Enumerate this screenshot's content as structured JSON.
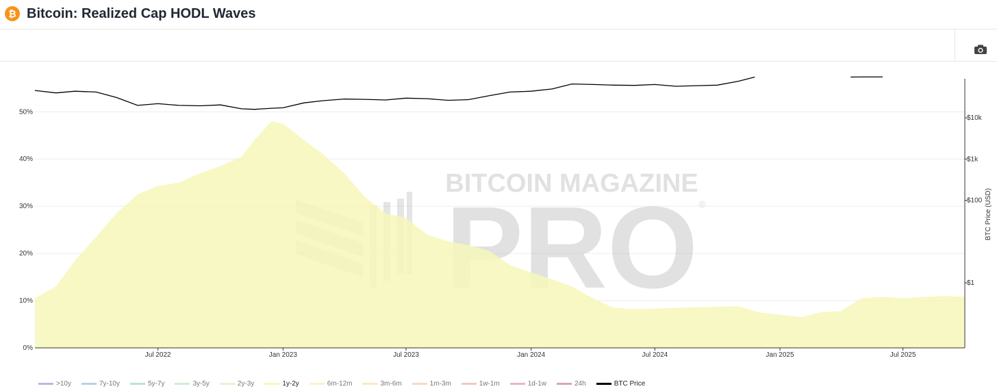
{
  "header": {
    "logo_glyph": "₿",
    "title": "Bitcoin: Realized Cap HODL Waves"
  },
  "toolbar": {
    "camera_icon": "camera-icon"
  },
  "watermark": {
    "line1": "BITCOIN MAGAZINE",
    "line2": "PRO",
    "mark": "®"
  },
  "legend": [
    {
      "label": ">10y",
      "color": "#a9a6d6",
      "active": false
    },
    {
      "label": "7y-10y",
      "color": "#a7c4e4",
      "active": false
    },
    {
      "label": "5y-7y",
      "color": "#a8dcd2",
      "active": false
    },
    {
      "label": "3y-5y",
      "color": "#c6e8c8",
      "active": false
    },
    {
      "label": "2y-3y",
      "color": "#e4f0c6",
      "active": false
    },
    {
      "label": "1y-2y",
      "color": "#f6f7b8",
      "active": true
    },
    {
      "label": "6m-12m",
      "color": "#fbefbc",
      "active": false
    },
    {
      "label": "3m-6m",
      "color": "#fbe1b4",
      "active": false
    },
    {
      "label": "1m-3m",
      "color": "#f9cdb3",
      "active": false
    },
    {
      "label": "1w-1m",
      "color": "#f3b6b1",
      "active": false
    },
    {
      "label": "1d-1w",
      "color": "#e7a3ae",
      "active": false
    },
    {
      "label": "24h",
      "color": "#cf8f9f",
      "active": false
    },
    {
      "label": "BTC Price",
      "color": "#000000",
      "active": true
    }
  ],
  "chart_data": {
    "type": "area",
    "title": "Bitcoin: Realized Cap HODL Waves",
    "x_ticks": [
      "Jul 2022",
      "Jan 2023",
      "Jul 2023",
      "Jan 2024",
      "Jul 2024",
      "Jan 2025",
      "Jul 2025"
    ],
    "y_left_ticks": [
      "0%",
      "10%",
      "20%",
      "30%",
      "40%",
      "50%"
    ],
    "y_left_range": [
      0,
      57
    ],
    "y_right_ticks": [
      "$1",
      "$100",
      "$1k",
      "$10k"
    ],
    "y_right_label": "BTC Price (USD)",
    "y_right_scale": "log",
    "series": [
      {
        "name": "1y-2y",
        "color": "#f6f7b8",
        "x": [
          "2022-01-01",
          "2022-02-01",
          "2022-03-01",
          "2022-04-01",
          "2022-05-01",
          "2022-06-01",
          "2022-07-01",
          "2022-08-01",
          "2022-09-01",
          "2022-10-01",
          "2022-11-01",
          "2022-11-20",
          "2022-12-15",
          "2023-01-01",
          "2023-02-01",
          "2023-03-01",
          "2023-04-01",
          "2023-05-01",
          "2023-06-01",
          "2023-07-01",
          "2023-08-01",
          "2023-09-01",
          "2023-10-01",
          "2023-11-01",
          "2023-12-01",
          "2024-01-01",
          "2024-02-01",
          "2024-03-01",
          "2024-04-01",
          "2024-05-01",
          "2024-06-01",
          "2024-07-01",
          "2024-08-01",
          "2024-09-01",
          "2024-10-01",
          "2024-11-01",
          "2024-12-01",
          "2025-01-01",
          "2025-02-01",
          "2025-03-01",
          "2025-04-01",
          "2025-05-01",
          "2025-06-01",
          "2025-07-01",
          "2025-08-01",
          "2025-09-01",
          "2025-09-30"
        ],
        "values": [
          10.5,
          13,
          18.5,
          23.5,
          28.5,
          32.5,
          34.3,
          35,
          37,
          38.5,
          40.5,
          44,
          48,
          47.5,
          44,
          41,
          37,
          32,
          28.5,
          27.5,
          24,
          22.5,
          21.8,
          20.5,
          17.5,
          16,
          14.5,
          13,
          10.5,
          8.5,
          8.2,
          8.3,
          8.5,
          8.6,
          8.7,
          8.8,
          7.5,
          7,
          6.5,
          7.5,
          7.8,
          10.5,
          10.8,
          10.5,
          10.8,
          11,
          10.8
        ]
      },
      {
        "name": "BTC Price",
        "color": "#000000",
        "x": [
          "2022-01-01",
          "2022-02-01",
          "2022-03-01",
          "2022-04-01",
          "2022-05-01",
          "2022-06-01",
          "2022-07-01",
          "2022-08-01",
          "2022-09-01",
          "2022-10-01",
          "2022-11-01",
          "2022-11-20",
          "2022-12-15",
          "2023-01-01",
          "2023-02-01",
          "2023-03-01",
          "2023-04-01",
          "2023-05-01",
          "2023-06-01",
          "2023-07-01",
          "2023-08-01",
          "2023-09-01",
          "2023-10-01",
          "2023-11-01",
          "2023-12-01",
          "2024-01-01",
          "2024-02-01",
          "2024-03-01",
          "2024-04-01",
          "2024-05-01",
          "2024-06-01",
          "2024-07-01",
          "2024-08-01",
          "2024-09-01",
          "2024-10-01",
          "2024-11-01",
          "2024-11-25"
        ],
        "values": [
          46000,
          40000,
          44000,
          42000,
          31000,
          20000,
          22000,
          20000,
          19500,
          20500,
          16500,
          16000,
          17000,
          17500,
          23000,
          26000,
          28500,
          28000,
          27000,
          30000,
          29000,
          26500,
          27500,
          34500,
          42000,
          44000,
          50000,
          66000,
          64000,
          62000,
          61000,
          64000,
          58000,
          60000,
          62000,
          77000,
          97000
        ]
      },
      {
        "name": "BTC Price",
        "color": "#000000",
        "x": [
          "2025-04-15",
          "2025-05-01",
          "2025-05-15",
          "2025-06-01"
        ],
        "values": [
          97000,
          97500,
          97500,
          97500
        ]
      }
    ]
  }
}
